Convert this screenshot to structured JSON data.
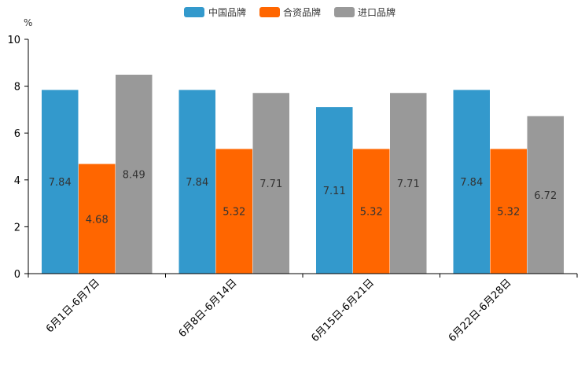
{
  "chart_data": {
    "type": "bar",
    "title": "",
    "xlabel": "",
    "ylabel": "%",
    "ylim": [
      0,
      10
    ],
    "yticks": [
      "0",
      "2",
      "4",
      "6",
      "8",
      "10"
    ],
    "categories": [
      "6月1日-6月7日",
      "6月8日-6月14日",
      "6月15日-6月21日",
      "6月22日-6月28日"
    ],
    "series": [
      {
        "name": "中国品牌",
        "color": "#3399cc",
        "values": [
          7.84,
          7.84,
          7.11,
          7.84
        ],
        "labels": [
          "7.84",
          "7.84",
          "7.11",
          "7.84"
        ]
      },
      {
        "name": "合资品牌",
        "color": "#ff6600",
        "values": [
          4.68,
          5.32,
          5.32,
          5.32
        ],
        "labels": [
          "4.68",
          "5.32",
          "5.32",
          "5.32"
        ]
      },
      {
        "name": "进口品牌",
        "color": "#999999",
        "values": [
          8.49,
          7.71,
          7.71,
          6.72
        ],
        "labels": [
          "8.49",
          "7.71",
          "7.71",
          "6.72"
        ]
      }
    ],
    "grid": false,
    "legend": "top-center"
  }
}
